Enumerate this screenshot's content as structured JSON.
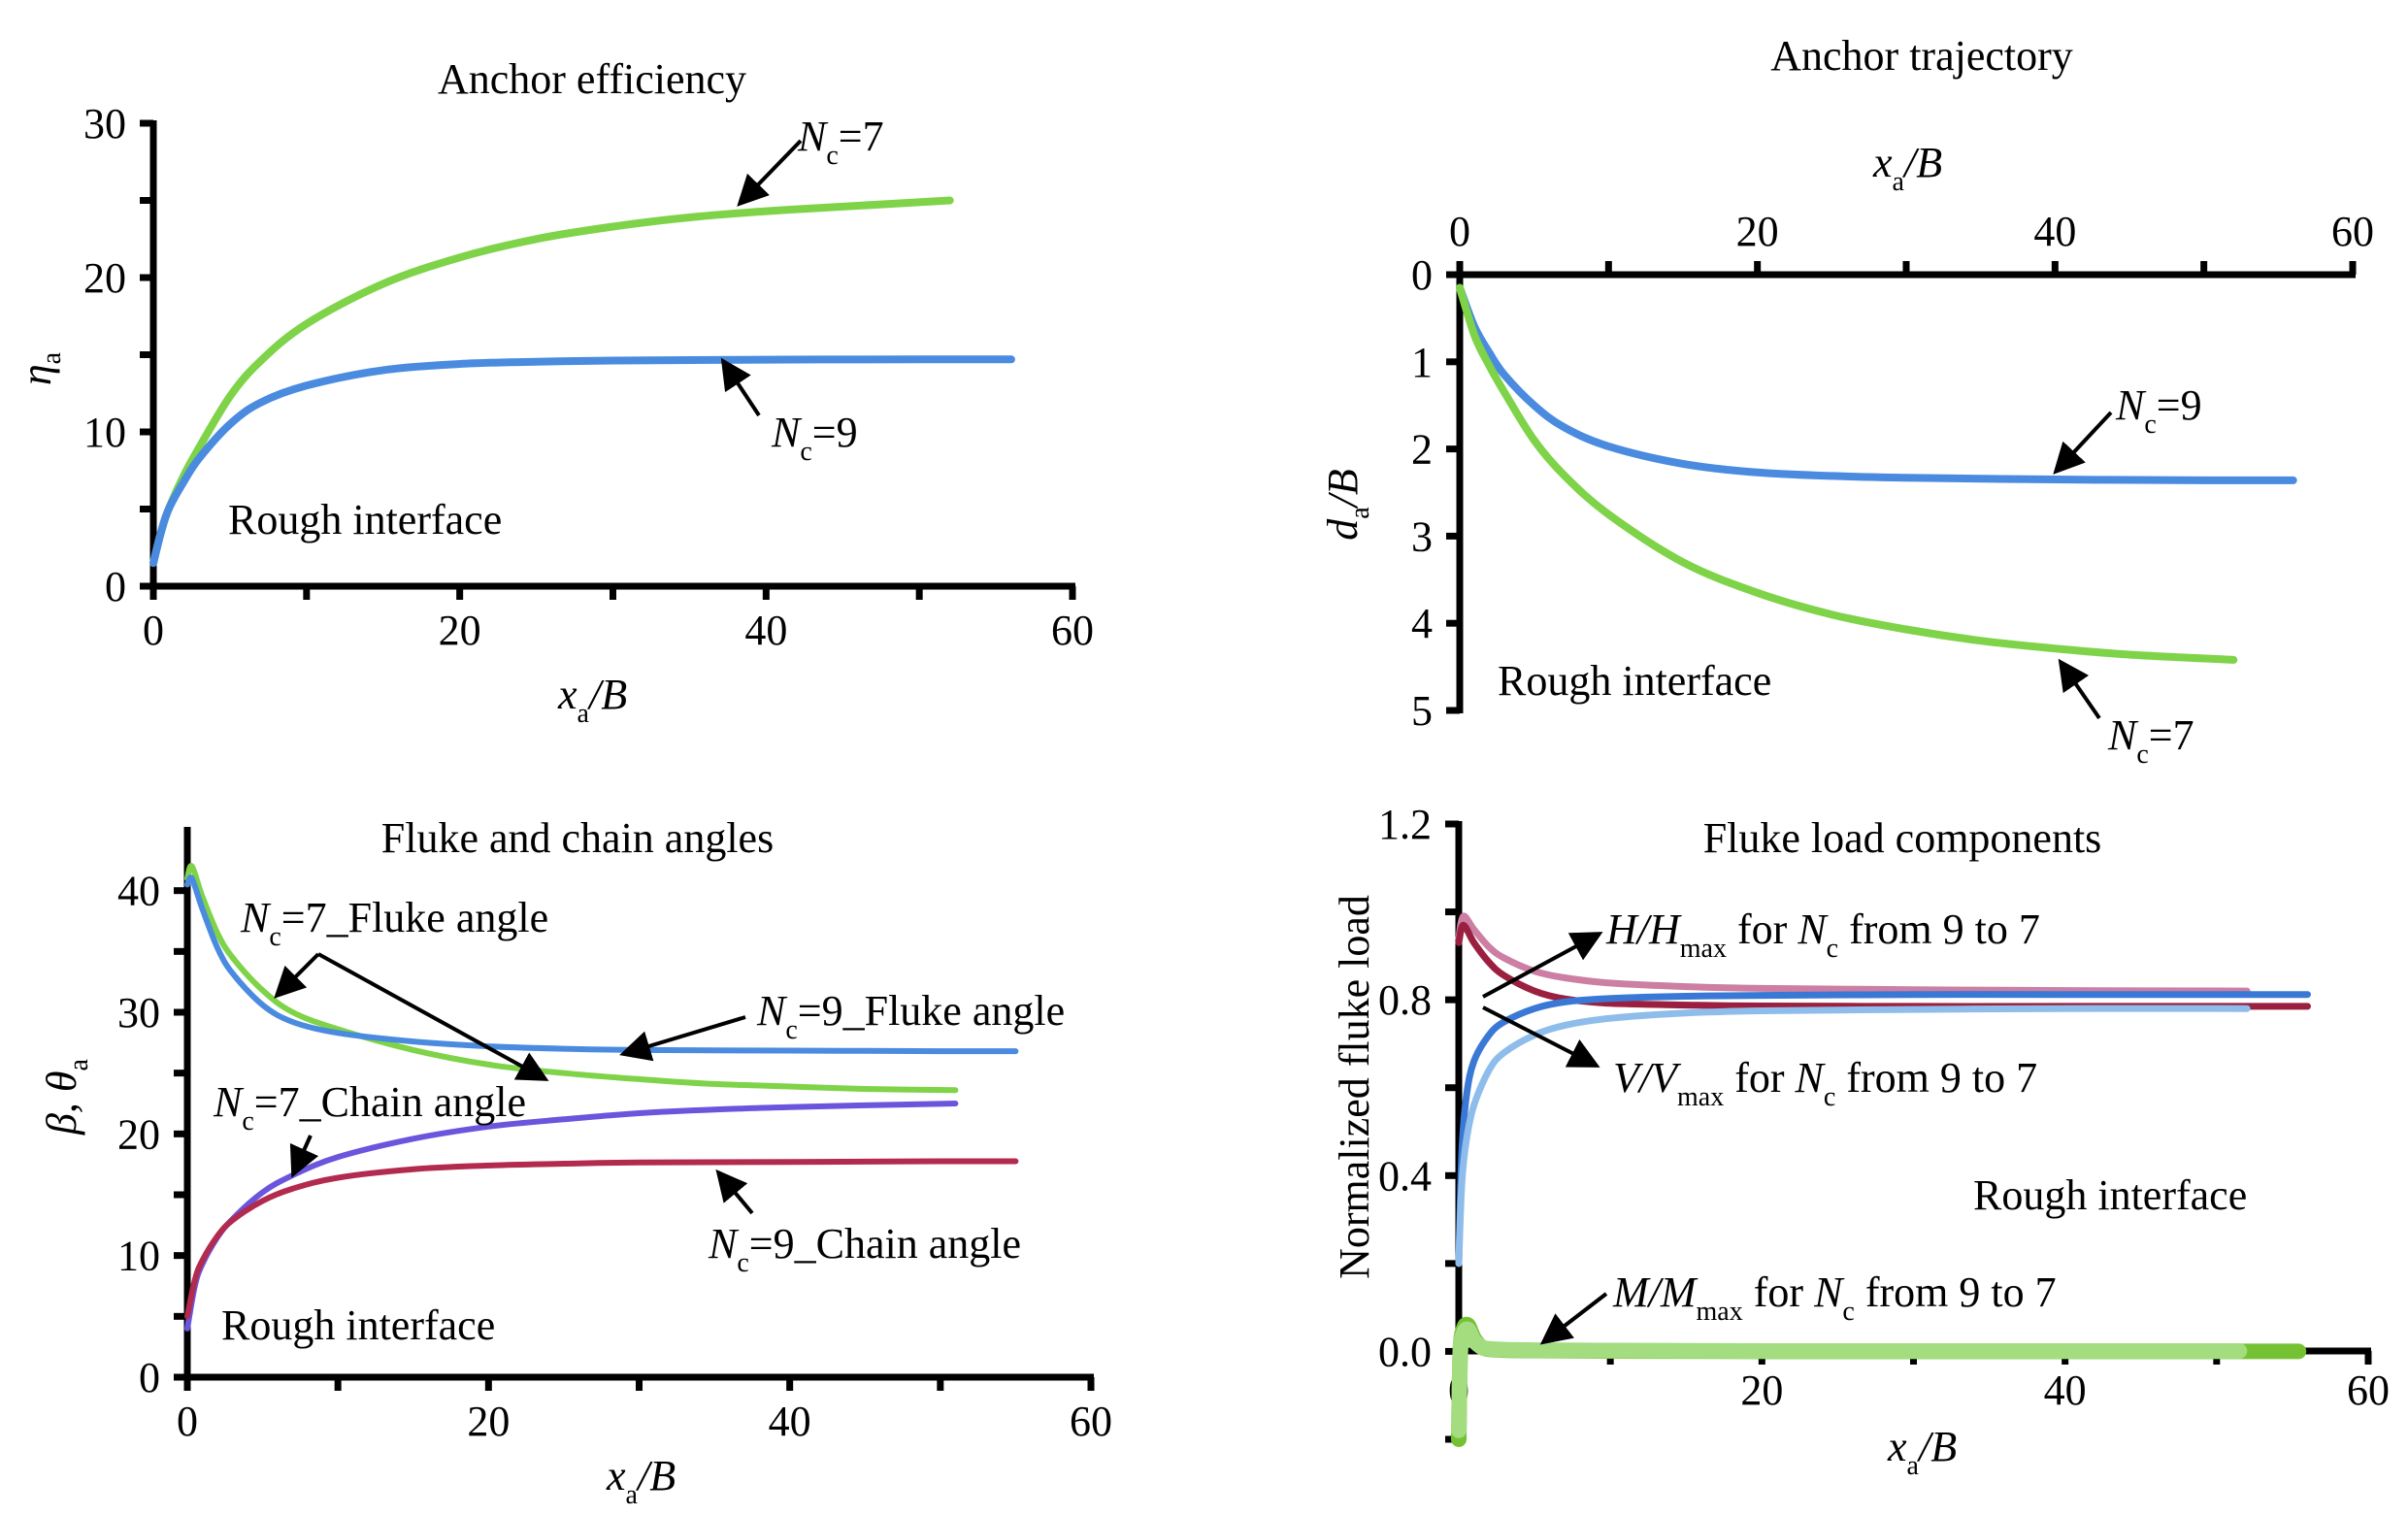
{
  "chart_data": [
    {
      "id": "efficiency",
      "type": "line",
      "title": "Anchor efficiency",
      "xlabel": "x_a/B",
      "ylabel": "η_a",
      "xlim": [
        0,
        60
      ],
      "ylim": [
        0,
        30
      ],
      "xticks": [
        0,
        20,
        40,
        60
      ],
      "xminor": [
        10,
        30,
        50
      ],
      "yticks": [
        0,
        10,
        20,
        30
      ],
      "yminor": [
        5,
        15,
        25
      ],
      "grid": false,
      "annotation_text": "Rough interface",
      "series": [
        {
          "name": "Nc=7",
          "color": "#7ed348",
          "x": [
            0,
            0.5,
            1,
            2,
            3,
            5,
            7,
            10,
            15,
            20,
            25,
            30,
            35,
            40,
            45,
            52
          ],
          "y": [
            1.5,
            3.5,
            5,
            7.2,
            9,
            12.3,
            14.6,
            17,
            19.6,
            21.3,
            22.5,
            23.3,
            23.9,
            24.3,
            24.6,
            25.0
          ]
        },
        {
          "name": "Nc=9",
          "color": "#4a8be0",
          "x": [
            0,
            0.5,
            1,
            2,
            3,
            5,
            7,
            10,
            15,
            20,
            25,
            30,
            40,
            50,
            56
          ],
          "y": [
            1.5,
            3.5,
            5,
            6.8,
            8.3,
            10.5,
            11.9,
            13.0,
            14.0,
            14.4,
            14.55,
            14.62,
            14.68,
            14.7,
            14.7
          ]
        }
      ],
      "labels": [
        {
          "main": "N",
          "sub": "c",
          "rest": "=7"
        },
        {
          "main": "N",
          "sub": "c",
          "rest": "=9"
        }
      ]
    },
    {
      "id": "trajectory",
      "type": "line",
      "title": "Anchor trajectory",
      "xlabel": "x_a/B",
      "ylabel": "d_a/B",
      "xlim": [
        0,
        60
      ],
      "ylim": [
        5,
        0
      ],
      "xticks": [
        0,
        20,
        40,
        60
      ],
      "xminor": [
        10,
        30,
        50
      ],
      "yticks": [
        0,
        1,
        2,
        3,
        4,
        5
      ],
      "grid": false,
      "annotation_text": "Rough interface",
      "series": [
        {
          "name": "Nc=9",
          "color": "#4a8be0",
          "x": [
            0,
            1,
            2,
            3,
            5,
            7,
            10,
            15,
            20,
            25,
            30,
            40,
            50,
            56
          ],
          "y": [
            0.15,
            0.6,
            0.9,
            1.15,
            1.5,
            1.75,
            1.97,
            2.17,
            2.27,
            2.31,
            2.33,
            2.35,
            2.36,
            2.36
          ]
        },
        {
          "name": "Nc=7",
          "color": "#7ed348",
          "x": [
            0,
            1,
            2,
            3,
            5,
            7,
            10,
            15,
            20,
            25,
            30,
            35,
            40,
            45,
            52
          ],
          "y": [
            0.15,
            0.7,
            1.05,
            1.35,
            1.9,
            2.3,
            2.75,
            3.3,
            3.65,
            3.9,
            4.07,
            4.2,
            4.29,
            4.36,
            4.42
          ]
        }
      ],
      "labels": [
        {
          "main": "N",
          "sub": "c",
          "rest": "=9"
        },
        {
          "main": "N",
          "sub": "c",
          "rest": "=7"
        }
      ]
    },
    {
      "id": "angles",
      "type": "line",
      "title": "Fluke and chain angles",
      "xlabel": "x_a/B",
      "ylabel": "β, θ_a",
      "xlim": [
        0,
        60
      ],
      "ylim": [
        0,
        45
      ],
      "xticks": [
        0,
        20,
        40,
        60
      ],
      "xminor": [
        10,
        30,
        50
      ],
      "yticks": [
        0,
        10,
        20,
        30,
        40
      ],
      "yminor": [
        5,
        15,
        25,
        35
      ],
      "grid": false,
      "annotation_text": "Rough interface",
      "series": [
        {
          "name": "Nc=7_Fluke angle",
          "color": "#7ed348",
          "x": [
            0,
            0.3,
            1,
            2,
            3,
            5,
            7,
            10,
            15,
            20,
            25,
            30,
            35,
            40,
            45,
            51
          ],
          "y": [
            41,
            42,
            39.5,
            36.5,
            34.5,
            31.8,
            30.0,
            28.6,
            26.9,
            25.7,
            25.0,
            24.5,
            24.1,
            23.9,
            23.7,
            23.6
          ]
        },
        {
          "name": "Nc=9_Fluke angle",
          "color": "#4a8be0",
          "x": [
            0,
            0.3,
            1,
            2,
            3,
            5,
            7,
            10,
            15,
            20,
            25,
            30,
            40,
            50,
            55
          ],
          "y": [
            40.5,
            41,
            38.5,
            35.3,
            33.2,
            30.6,
            29.2,
            28.3,
            27.6,
            27.2,
            27.0,
            26.9,
            26.85,
            26.8,
            26.8
          ]
        },
        {
          "name": "Nc=7_Chain angle",
          "color": "#6a55dd",
          "x": [
            0,
            0.5,
            1,
            2,
            3,
            5,
            7,
            10,
            15,
            20,
            25,
            30,
            35,
            40,
            45,
            51
          ],
          "y": [
            4,
            7.5,
            9.3,
            11.5,
            13.0,
            15.2,
            16.6,
            18.1,
            19.6,
            20.6,
            21.2,
            21.7,
            22.0,
            22.2,
            22.35,
            22.5
          ]
        },
        {
          "name": "Nc=9_Chain angle",
          "color": "#b22a4e",
          "x": [
            0,
            0.5,
            1,
            2,
            3,
            5,
            7,
            10,
            15,
            20,
            25,
            30,
            40,
            50,
            55
          ],
          "y": [
            5,
            8,
            9.6,
            11.6,
            12.9,
            14.5,
            15.5,
            16.4,
            17.1,
            17.4,
            17.55,
            17.65,
            17.7,
            17.75,
            17.75
          ]
        }
      ],
      "labels": [
        {
          "main": "N",
          "sub": "c",
          "rest": "=7_Fluke angle"
        },
        {
          "main": "N",
          "sub": "c",
          "rest": "=9_Fluke angle"
        },
        {
          "main": "N",
          "sub": "c",
          "rest": "=7_Chain angle"
        },
        {
          "main": "N",
          "sub": "c",
          "rest": "=9_Chain angle"
        }
      ]
    },
    {
      "id": "loads",
      "type": "line",
      "title": "Fluke load components",
      "xlabel": "x_a/B",
      "ylabel": "Normalized fluke load",
      "xlim": [
        0,
        60
      ],
      "ylim": [
        -0.2,
        1.2
      ],
      "xticks": [
        0,
        20,
        40,
        60
      ],
      "xminor": [
        10,
        30,
        50
      ],
      "yticks": [
        0.0,
        0.4,
        0.8,
        1.2
      ],
      "yticks_text": [
        "0.0",
        "0.4",
        "0.8",
        "1.2"
      ],
      "yminor": [
        -0.2,
        0.2,
        0.6,
        1.0
      ],
      "grid": false,
      "annotation_text": "Rough interface",
      "series": [
        {
          "name": "H/Hmax Nc=7",
          "color": "#cc7fa3",
          "x": [
            0,
            0.3,
            1,
            2,
            3,
            5,
            7,
            10,
            15,
            20,
            30,
            40,
            52
          ],
          "y": [
            0.94,
            0.99,
            0.96,
            0.92,
            0.895,
            0.865,
            0.85,
            0.838,
            0.83,
            0.826,
            0.823,
            0.821,
            0.82
          ]
        },
        {
          "name": "H/Hmax Nc=9",
          "color": "#9b2040",
          "x": [
            0,
            0.3,
            1,
            2,
            3,
            5,
            7,
            10,
            15,
            20,
            30,
            40,
            56
          ],
          "y": [
            0.93,
            0.97,
            0.93,
            0.885,
            0.855,
            0.82,
            0.802,
            0.792,
            0.788,
            0.786,
            0.785,
            0.785,
            0.785
          ]
        },
        {
          "name": "V/Vmax Nc=9",
          "color": "#3a78d6",
          "x": [
            0,
            0.2,
            0.5,
            1,
            2,
            3,
            5,
            7,
            10,
            15,
            20,
            30,
            40,
            56
          ],
          "y": [
            0.2,
            0.45,
            0.58,
            0.66,
            0.72,
            0.75,
            0.78,
            0.795,
            0.803,
            0.808,
            0.81,
            0.812,
            0.812,
            0.812
          ]
        },
        {
          "name": "V/Vmax Nc=7",
          "color": "#8fbdeb",
          "x": [
            0,
            0.2,
            0.5,
            1,
            2,
            3,
            5,
            7,
            10,
            15,
            20,
            30,
            40,
            52
          ],
          "y": [
            0.2,
            0.38,
            0.48,
            0.56,
            0.64,
            0.68,
            0.72,
            0.742,
            0.758,
            0.77,
            0.775,
            0.778,
            0.78,
            0.78
          ]
        },
        {
          "name": "M/Mmax Nc=9",
          "color": "#74c234",
          "x": [
            0,
            0.1,
            0.3,
            0.6,
            1,
            1.5,
            2,
            3,
            5,
            10,
            20,
            40,
            55.4
          ],
          "y": [
            -0.2,
            0.0,
            0.05,
            0.06,
            0.03,
            0.01,
            0.005,
            0.003,
            0.002,
            0.001,
            0.0,
            0.0,
            0.0
          ]
        },
        {
          "name": "M/Mmax Nc=7",
          "color": "#a3dd7f",
          "x": [
            0,
            0.1,
            0.3,
            0.6,
            1,
            1.5,
            2,
            3,
            5,
            10,
            20,
            40,
            51.5
          ],
          "y": [
            -0.18,
            0.0,
            0.04,
            0.05,
            0.025,
            0.01,
            0.006,
            0.004,
            0.003,
            0.002,
            0.001,
            0.001,
            0.001
          ]
        }
      ],
      "labels": [
        {
          "main": "H/H",
          "sub": "max",
          "rest": " for ",
          "main2": "N",
          "sub2": "c",
          "rest2": " from 9 to 7"
        },
        {
          "main": "V/V",
          "sub": "max",
          "rest": " for ",
          "main2": "N",
          "sub2": "c",
          "rest2": " from 9 to 7"
        },
        {
          "main": "M/M",
          "sub": "max",
          "rest": " for ",
          "main2": "N",
          "sub2": "c",
          "rest2": " from 9 to 7"
        }
      ]
    }
  ]
}
